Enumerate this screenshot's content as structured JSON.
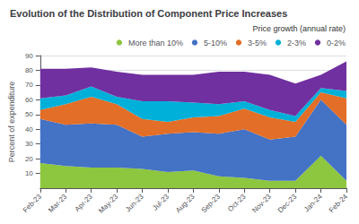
{
  "chart_data": {
    "type": "area",
    "title": "Evolution of the Distribution of Component Price Increases",
    "ylabel": "Percent of expenditure",
    "legend_title": "Price growth (annual rate)",
    "categories": [
      "Feb-23",
      "Mar-23",
      "Apr-23",
      "May-23",
      "Jun-23",
      "Jul-23",
      "Aug-23",
      "Sep-23",
      "Oct-23",
      "Nov-23",
      "Dec-23",
      "Jan-24",
      "Feb-24"
    ],
    "series": [
      {
        "name": "More than 10%",
        "color": "#8dc63f",
        "values": [
          17,
          15,
          14,
          14,
          13,
          11,
          12,
          8,
          7,
          5,
          5,
          22,
          5
        ]
      },
      {
        "name": "5-10%",
        "color": "#4472c4",
        "values": [
          30,
          28,
          30,
          29,
          22,
          26,
          26,
          29,
          33,
          28,
          30,
          38,
          38
        ]
      },
      {
        "name": "3-5%",
        "color": "#e36e27",
        "values": [
          6,
          14,
          18,
          14,
          12,
          8,
          10,
          12,
          14,
          15,
          10,
          5,
          18
        ]
      },
      {
        "name": "2-3%",
        "color": "#00b0d8",
        "values": [
          8,
          6,
          7,
          5,
          12,
          14,
          10,
          8,
          5,
          5,
          4,
          3,
          5
        ]
      },
      {
        "name": "0-2%",
        "color": "#7030a0",
        "values": [
          20,
          18,
          13,
          17,
          18,
          18,
          19,
          22,
          20,
          24,
          22,
          9,
          20
        ]
      }
    ],
    "stacked": true,
    "ylim": [
      0,
      90
    ],
    "yticks": [
      10,
      20,
      30,
      40,
      50,
      60,
      70,
      80,
      90
    ],
    "grid": true,
    "legend": "upper right"
  }
}
